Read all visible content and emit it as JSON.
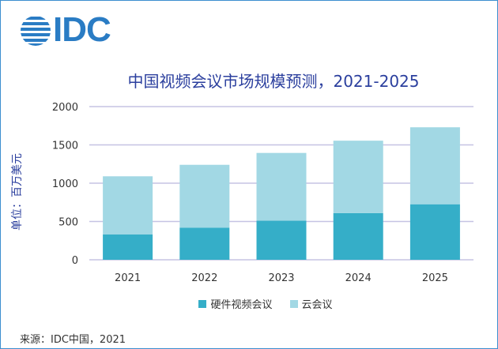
{
  "logo": {
    "text": "IDC",
    "color": "#2a7cc4"
  },
  "chart_data": {
    "type": "bar",
    "stacked": true,
    "title": "中国视频会议市场规模预测，2021-2025",
    "ylabel": "单位：百万美元",
    "xlabel": "",
    "categories": [
      "2021",
      "2022",
      "2023",
      "2024",
      "2025"
    ],
    "series": [
      {
        "name": "硬件视频会议",
        "color": "#35aec8",
        "values": [
          330,
          420,
          510,
          610,
          725
        ]
      },
      {
        "name": "云会议",
        "color": "#a2d8e4",
        "values": [
          760,
          820,
          885,
          945,
          1005
        ]
      }
    ],
    "ylim": [
      0,
      2000
    ],
    "yticks": [
      "0",
      "500",
      "1000",
      "1500",
      "2000"
    ],
    "grid": true,
    "legend_position": "bottom"
  },
  "source": "来源：IDC中国，2021"
}
